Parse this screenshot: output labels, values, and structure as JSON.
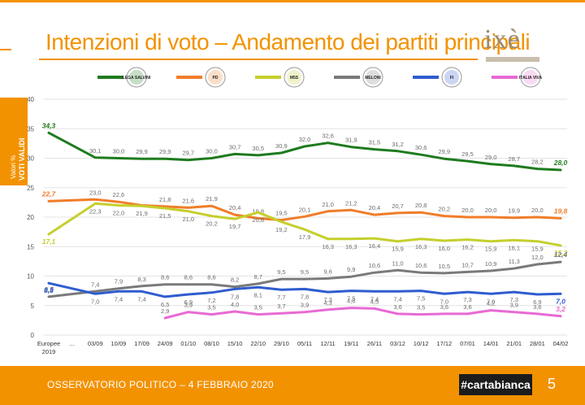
{
  "header": {
    "title": "Intenzioni di voto – Andamento dei partiti principali",
    "logo": "ixè"
  },
  "side_label": {
    "line1": "Valori %",
    "line2": "VOTI VALIDI"
  },
  "footer": {
    "source": "OSSERVATORIO POLITICO – 4 FEBBRAIO 2020",
    "brand": "#cartabianca",
    "page": "5"
  },
  "legend": [
    {
      "color": "#1e7b1e",
      "icon": "lega-salvini-logo",
      "text": "LEGA SALVINI"
    },
    {
      "color": "#f07d29",
      "icon": "pd-logo",
      "text": "PD"
    },
    {
      "color": "#c5cf2c",
      "icon": "movimento-5-stelle-logo",
      "text": "M5S"
    },
    {
      "color": "#7a7a7a",
      "icon": "fratelli-italia-meloni-logo",
      "text": "MELONI"
    },
    {
      "color": "#2f5ccf",
      "icon": "forza-italia-logo",
      "text": "FI"
    },
    {
      "color": "#e86ad3",
      "icon": "italia-viva-logo",
      "text": "ITALIA VIVA"
    }
  ],
  "chart_data": {
    "type": "line",
    "title": "Intenzioni di voto – Andamento dei partiti principali",
    "ylim": [
      0,
      40
    ],
    "yticks": [
      "0",
      "5",
      "10",
      "15",
      "20",
      "25",
      "30",
      "35",
      "40"
    ],
    "grid": true,
    "categories": [
      "Europee 2019",
      "…",
      "03/09",
      "10/09",
      "17/09",
      "24/09",
      "01/10",
      "08/10",
      "15/10",
      "22/10",
      "29/10",
      "05/11",
      "12/11",
      "19/11",
      "26/11",
      "03/12",
      "10/12",
      "17/12",
      "07/01",
      "14/01",
      "21/01",
      "28/01",
      "04/02"
    ],
    "series": [
      {
        "color": "#1e7b1e",
        "labelPos": "above",
        "values": [
          34.3,
          null,
          30.1,
          30.0,
          29.9,
          29.9,
          29.7,
          30.0,
          30.7,
          30.5,
          30.9,
          32.0,
          32.6,
          31.9,
          31.5,
          31.2,
          30.6,
          29.9,
          29.5,
          29.0,
          28.7,
          28.2,
          28.0
        ],
        "labels": [
          "34,3",
          "",
          "30,1",
          "30,0",
          "29,9",
          "29,9",
          "29,7",
          "30,0",
          "30,7",
          "30,5",
          "30,9",
          "32,0",
          "32,6",
          "31,9",
          "31,5",
          "31,2",
          "30,6",
          "29,9",
          "29,5",
          "29,0",
          "28,7",
          "28,2",
          "28,0"
        ]
      },
      {
        "color": "#f07d29",
        "labelPos": "above",
        "values": [
          22.7,
          null,
          23.0,
          22.6,
          22.0,
          21.8,
          21.6,
          21.9,
          20.4,
          19.8,
          19.5,
          20.1,
          21.0,
          21.2,
          20.4,
          20.7,
          20.8,
          20.2,
          20.0,
          20.0,
          19.9,
          20.0,
          19.8
        ],
        "labels": [
          "22,7",
          "",
          "23,0",
          "22,6",
          "",
          "21,8",
          "21,6",
          "21,9",
          "20,4",
          "19,8",
          "19,5",
          "20,1",
          "21,0",
          "21,2",
          "20,4",
          "20,7",
          "20,8",
          "20,2",
          "20,0",
          "20,0",
          "19,9",
          "20,0",
          "19,8"
        ]
      },
      {
        "color": "#c5cf2c",
        "labelPos": "below",
        "values": [
          17.1,
          null,
          22.3,
          22.0,
          21.9,
          21.5,
          21.0,
          20.2,
          19.7,
          20.8,
          19.2,
          17.9,
          16.3,
          16.3,
          16.4,
          15.9,
          16.3,
          16.0,
          16.2,
          15.9,
          16.1,
          15.9,
          15.2
        ],
        "labels": [
          "17,1",
          "",
          "22,3",
          "22,0",
          "21,9",
          "21,5",
          "21,0",
          "20,2",
          "19,7",
          "20,8",
          "19,2",
          "17,9",
          "16,3",
          "16,3",
          "16,4",
          "15,9",
          "16,3",
          "16,0",
          "16,2",
          "15,9",
          "16,1",
          "15,9",
          "15,2"
        ]
      },
      {
        "color": "#7a7a7a",
        "labelPos": "above",
        "values": [
          6.5,
          null,
          7.4,
          7.9,
          8.3,
          8.6,
          8.6,
          8.6,
          8.2,
          8.7,
          9.5,
          9.5,
          9.6,
          9.9,
          10.6,
          11.0,
          10.6,
          10.5,
          10.7,
          10.9,
          11.3,
          12.0,
          12.4
        ],
        "labels": [
          "6,5",
          "",
          "7,4",
          "7,9",
          "8,3",
          "8,6",
          "8,6",
          "8,6",
          "8,2",
          "8,7",
          "9,5",
          "9,5",
          "9,6",
          "9,9",
          "10,6",
          "11,0",
          "10,6",
          "10,5",
          "10,7",
          "10,9",
          "11,3",
          "12,0",
          "12,4"
        ]
      },
      {
        "color": "#2f5ccf",
        "labelPos": "below",
        "values": [
          8.8,
          null,
          7.0,
          7.4,
          7.4,
          6.5,
          6.9,
          7.2,
          7.8,
          8.1,
          7.7,
          7.8,
          7.3,
          7.5,
          7.4,
          7.4,
          7.5,
          7.0,
          7.3,
          7.0,
          7.3,
          6.9,
          7.0
        ],
        "labels": [
          "8,8",
          "",
          "7,0",
          "7,4",
          "7,4",
          "6,5",
          "6,9",
          "7,2",
          "7,8",
          "8,1",
          "7,7",
          "7,8",
          "7,3",
          "7,5",
          "7,4",
          "7,4",
          "7,5",
          "7,0",
          "7,3",
          "7,0",
          "7,3",
          "6,9",
          "7,0"
        ]
      },
      {
        "color": "#e86ad3",
        "labelPos": "above",
        "values": [
          null,
          null,
          null,
          null,
          null,
          2.9,
          3.9,
          3.5,
          4.0,
          3.5,
          3.7,
          3.9,
          4.3,
          4.6,
          4.5,
          3.6,
          3.5,
          3.6,
          3.6,
          4.2,
          3.9,
          3.6,
          3.2
        ],
        "labels": [
          "",
          "",
          "",
          "",
          "",
          "2,9",
          "3,9",
          "3,5",
          "4,0",
          "3,5",
          "3,7",
          "3,9",
          "4,3",
          "4,6",
          "4,5",
          "3,6",
          "3,5",
          "3,6",
          "3,6",
          "4,2",
          "3,9",
          "3,6",
          "3,2"
        ]
      }
    ]
  }
}
